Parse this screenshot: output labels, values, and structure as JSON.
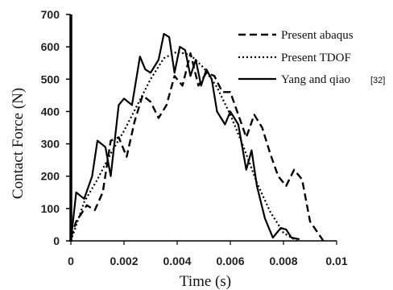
{
  "chart_data": {
    "type": "line",
    "xlabel": "Time (s)",
    "ylabel": "Contact Force (N)",
    "xlim": [
      0,
      0.01
    ],
    "ylim": [
      0,
      700
    ],
    "xticks": [
      "0",
      "0.002",
      "0.004",
      "0.006",
      "0.008",
      "0.01"
    ],
    "yticks": [
      "0",
      "100",
      "200",
      "300",
      "400",
      "500",
      "600",
      "700"
    ],
    "grid": false,
    "legend_position": "top-right",
    "series": [
      {
        "name": "Present  abaqus",
        "dash": "dashed",
        "x": [
          0,
          0.0002,
          0.0006,
          0.0009,
          0.0012,
          0.0015,
          0.0018,
          0.0021,
          0.0024,
          0.0027,
          0.003,
          0.0033,
          0.0036,
          0.0039,
          0.0042,
          0.0045,
          0.0048,
          0.0051,
          0.0054,
          0.0057,
          0.006,
          0.0063,
          0.0066,
          0.0069,
          0.0072,
          0.0075,
          0.0078,
          0.0081,
          0.0084,
          0.0087,
          0.009,
          0.0095
        ],
        "y": [
          10,
          60,
          110,
          95,
          150,
          310,
          320,
          260,
          370,
          450,
          430,
          380,
          420,
          510,
          480,
          580,
          480,
          520,
          510,
          460,
          460,
          390,
          320,
          390,
          350,
          270,
          200,
          170,
          220,
          190,
          60,
          0
        ]
      },
      {
        "name": "Present TDOF",
        "dash": "dotted",
        "x": [
          0,
          0.0005,
          0.001,
          0.0015,
          0.002,
          0.0025,
          0.003,
          0.0035,
          0.004,
          0.0045,
          0.005,
          0.0055,
          0.006,
          0.0065,
          0.007,
          0.0075,
          0.008,
          0.0085
        ],
        "y": [
          0,
          120,
          190,
          270,
          340,
          420,
          500,
          565,
          585,
          575,
          535,
          475,
          390,
          290,
          180,
          90,
          25,
          0
        ]
      },
      {
        "name": "Yang and qiao",
        "dash": "solid",
        "x": [
          0,
          0.0002,
          0.0005,
          0.0008,
          0.001,
          0.0013,
          0.0015,
          0.0018,
          0.002,
          0.0023,
          0.0026,
          0.0028,
          0.003,
          0.0033,
          0.0035,
          0.0037,
          0.0039,
          0.0041,
          0.0043,
          0.0045,
          0.0047,
          0.0049,
          0.0051,
          0.0053,
          0.0055,
          0.0058,
          0.006,
          0.0063,
          0.0066,
          0.0068,
          0.007,
          0.0073,
          0.0076,
          0.0079,
          0.0081,
          0.0083,
          0.0086
        ],
        "y": [
          0,
          150,
          130,
          200,
          310,
          290,
          200,
          420,
          440,
          420,
          570,
          530,
          520,
          560,
          640,
          630,
          520,
          600,
          590,
          510,
          560,
          480,
          530,
          500,
          400,
          360,
          400,
          360,
          220,
          280,
          170,
          70,
          10,
          40,
          35,
          10,
          5
        ]
      }
    ],
    "annotation": "[32]"
  }
}
